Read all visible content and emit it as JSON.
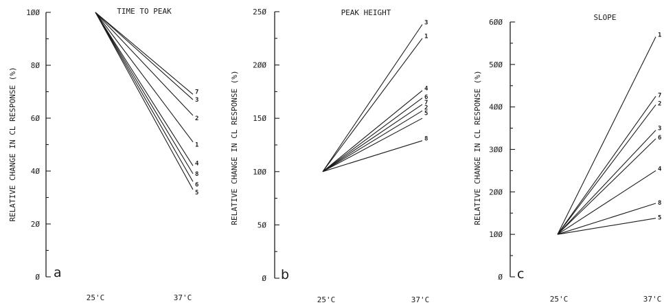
{
  "chart_data": [
    {
      "type": "line",
      "panel_letter": "a",
      "title": "TIME TO PEAK",
      "ylabel": "RELATIVE CHANGE IN CL RESPONSE (%)",
      "xlabel": "",
      "categories": [
        "25'C",
        "37'C"
      ],
      "ylim": [
        0,
        110
      ],
      "yticks": [
        0,
        20,
        40,
        60,
        80,
        100
      ],
      "ytick_labels": [
        "Ø",
        "2Ø",
        "4Ø",
        "6Ø",
        "8Ø",
        "1ØØ"
      ],
      "series": [
        {
          "name": "7",
          "values": [
            100,
            69
          ]
        },
        {
          "name": "3",
          "values": [
            100,
            67
          ]
        },
        {
          "name": "2",
          "values": [
            100,
            61
          ]
        },
        {
          "name": "1",
          "values": [
            100,
            51
          ]
        },
        {
          "name": "4",
          "values": [
            100,
            42
          ]
        },
        {
          "name": "8",
          "values": [
            100,
            39
          ]
        },
        {
          "name": "6",
          "values": [
            100,
            36
          ]
        },
        {
          "name": "5",
          "values": [
            100,
            33
          ]
        }
      ],
      "label_values": [
        70,
        67,
        60,
        50,
        43,
        39,
        35,
        32
      ]
    },
    {
      "type": "line",
      "panel_letter": "b",
      "title": "PEAK HEIGHT",
      "ylabel": "RELATIVE CHANGE IN CL RESPONSE (%)",
      "xlabel": "",
      "categories": [
        "25'C",
        "37'C"
      ],
      "ylim": [
        0,
        250
      ],
      "yticks": [
        0,
        50,
        100,
        150,
        200,
        250
      ],
      "ytick_labels": [
        "Ø",
        "5Ø",
        "1ØØ",
        "15Ø",
        "2ØØ",
        "25Ø"
      ],
      "series": [
        {
          "name": "3",
          "values": [
            100,
            238
          ]
        },
        {
          "name": "1",
          "values": [
            100,
            225
          ]
        },
        {
          "name": "4",
          "values": [
            100,
            176
          ]
        },
        {
          "name": "6",
          "values": [
            100,
            169
          ]
        },
        {
          "name": "7",
          "values": [
            100,
            163
          ]
        },
        {
          "name": "2",
          "values": [
            100,
            157
          ]
        },
        {
          "name": "5",
          "values": [
            100,
            150
          ]
        },
        {
          "name": "8",
          "values": [
            100,
            129
          ]
        }
      ],
      "label_values": [
        240,
        227,
        178,
        170,
        165,
        160,
        155,
        131
      ]
    },
    {
      "type": "line",
      "panel_letter": "c",
      "title": "SLOPE",
      "ylabel": "RELATIVE CHANGE IN CL RESPONSE (%)",
      "xlabel": "",
      "categories": [
        "25'C",
        "37'C"
      ],
      "ylim": [
        0,
        600
      ],
      "yticks": [
        0,
        100,
        200,
        300,
        400,
        500,
        600
      ],
      "ytick_labels": [
        "Ø",
        "1ØØ",
        "2ØØ",
        "3ØØ",
        "4ØØ",
        "5ØØ",
        "6ØØ"
      ],
      "series": [
        {
          "name": "1",
          "values": [
            100,
            565
          ]
        },
        {
          "name": "7",
          "values": [
            100,
            425
          ]
        },
        {
          "name": "2",
          "values": [
            100,
            405
          ]
        },
        {
          "name": "3",
          "values": [
            100,
            345
          ]
        },
        {
          "name": "6",
          "values": [
            100,
            325
          ]
        },
        {
          "name": "4",
          "values": [
            100,
            250
          ]
        },
        {
          "name": "8",
          "values": [
            100,
            173
          ]
        },
        {
          "name": "5",
          "values": [
            100,
            138
          ]
        }
      ],
      "label_values": [
        570,
        428,
        408,
        350,
        328,
        255,
        175,
        140
      ]
    }
  ]
}
